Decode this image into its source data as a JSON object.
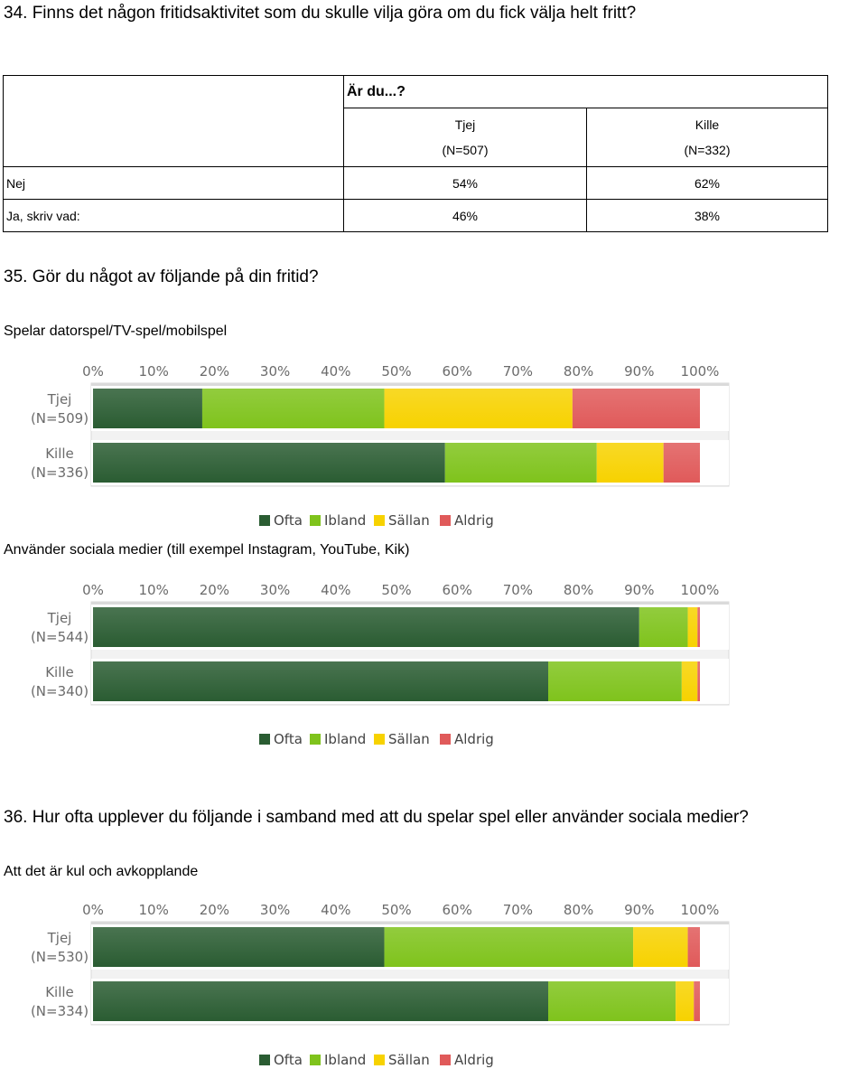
{
  "q34": {
    "title": "34. Finns det någon fritidsaktivitet som du skulle vilja göra om du fick välja helt fritt?",
    "table": {
      "group_header": "Är du...?",
      "columns": [
        {
          "name": "Tjej",
          "n": "(N=507)"
        },
        {
          "name": "Kille",
          "n": "(N=332)"
        }
      ],
      "rows": [
        {
          "label": "Nej",
          "values": [
            "54%",
            "62%"
          ]
        },
        {
          "label": "Ja, skriv vad:",
          "values": [
            "46%",
            "38%"
          ]
        }
      ]
    }
  },
  "q35": {
    "title": "35. Gör du något av följande på din fritid?",
    "charts": [
      {
        "subtitle": "Spelar datorspel/TV-spel/mobilspel",
        "chart_data": {
          "type": "bar",
          "orientation": "horizontal",
          "stacked": true,
          "x_ticks": [
            "0%",
            "10%",
            "20%",
            "30%",
            "40%",
            "50%",
            "60%",
            "70%",
            "80%",
            "90%",
            "100%"
          ],
          "xlim": [
            0,
            100
          ],
          "legend_position": "bottom",
          "categories": [
            {
              "name": "Tjej",
              "n": "(N=509)"
            },
            {
              "name": "Kille",
              "n": "(N=336)"
            }
          ],
          "series": [
            {
              "name": "Ofta",
              "color": "#2a5c32",
              "values": [
                18,
                58
              ]
            },
            {
              "name": "Ibland",
              "color": "#7fc31c",
              "values": [
                30,
                25
              ]
            },
            {
              "name": "Sällan",
              "color": "#f7d200",
              "values": [
                31,
                11
              ]
            },
            {
              "name": "Aldrig",
              "color": "#e05a5a",
              "values": [
                21,
                6
              ]
            }
          ]
        }
      },
      {
        "subtitle": "Använder sociala medier (till exempel Instagram, YouTube, Kik)",
        "chart_data": {
          "type": "bar",
          "orientation": "horizontal",
          "stacked": true,
          "x_ticks": [
            "0%",
            "10%",
            "20%",
            "30%",
            "40%",
            "50%",
            "60%",
            "70%",
            "80%",
            "90%",
            "100%"
          ],
          "xlim": [
            0,
            100
          ],
          "legend_position": "bottom",
          "categories": [
            {
              "name": "Tjej",
              "n": "(N=544)"
            },
            {
              "name": "Kille",
              "n": "(N=340)"
            }
          ],
          "series": [
            {
              "name": "Ofta",
              "color": "#2a5c32",
              "values": [
                90,
                75
              ]
            },
            {
              "name": "Ibland",
              "color": "#7fc31c",
              "values": [
                8,
                22
              ]
            },
            {
              "name": "Sällan",
              "color": "#f7d200",
              "values": [
                1.6,
                2.6
              ]
            },
            {
              "name": "Aldrig",
              "color": "#e05a5a",
              "values": [
                0.4,
                0.4
              ]
            }
          ]
        }
      }
    ]
  },
  "q36": {
    "title": "36. Hur ofta upplever du följande i samband med att du spelar spel eller använder sociala medier?",
    "charts": [
      {
        "subtitle": "Att det är kul och avkopplande",
        "chart_data": {
          "type": "bar",
          "orientation": "horizontal",
          "stacked": true,
          "x_ticks": [
            "0%",
            "10%",
            "20%",
            "30%",
            "40%",
            "50%",
            "60%",
            "70%",
            "80%",
            "90%",
            "100%"
          ],
          "xlim": [
            0,
            100
          ],
          "legend_position": "bottom",
          "categories": [
            {
              "name": "Tjej",
              "n": "(N=530)"
            },
            {
              "name": "Kille",
              "n": "(N=334)"
            }
          ],
          "series": [
            {
              "name": "Ofta",
              "color": "#2a5c32",
              "values": [
                48,
                75
              ]
            },
            {
              "name": "Ibland",
              "color": "#7fc31c",
              "values": [
                41,
                21
              ]
            },
            {
              "name": "Sällan",
              "color": "#f7d200",
              "values": [
                9,
                3
              ]
            },
            {
              "name": "Aldrig",
              "color": "#e05a5a",
              "values": [
                2,
                1
              ]
            }
          ]
        }
      }
    ]
  }
}
